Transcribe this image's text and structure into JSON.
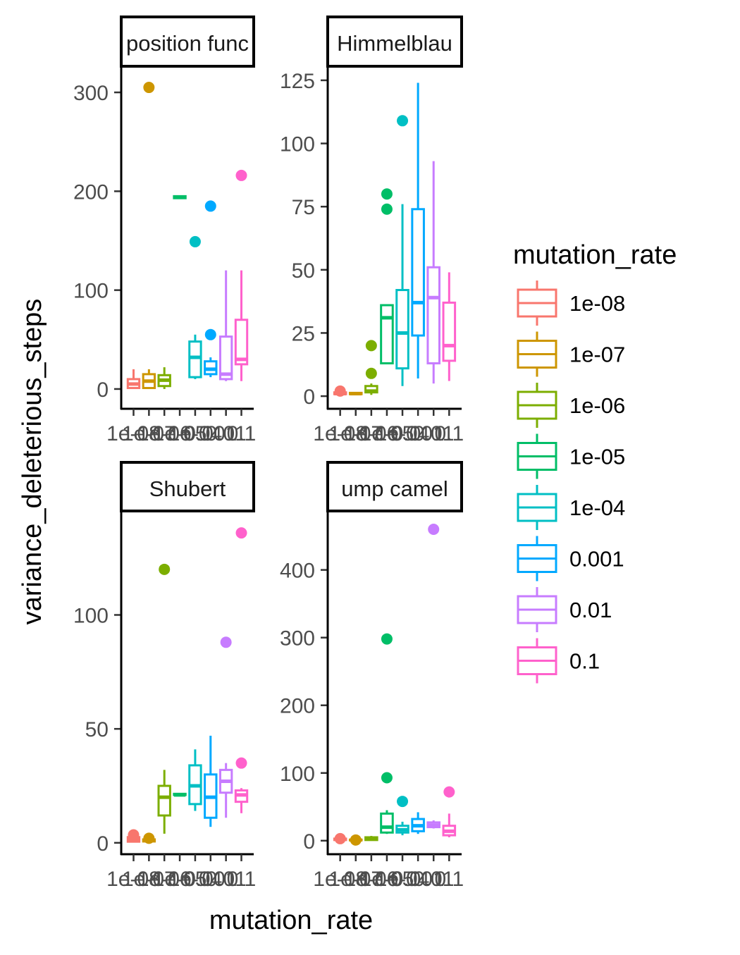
{
  "axis": {
    "xlabel": "mutation_rate",
    "ylabel": "variance_deleterious_steps"
  },
  "legend": {
    "title": "mutation_rate",
    "placement": "right"
  },
  "chart_data": [
    {
      "type": "box",
      "panel": "position func",
      "strip_label": "position func",
      "ylim": [
        -20,
        325
      ],
      "yticks": [
        0,
        100,
        200,
        300
      ],
      "categories": [
        "1e-08",
        "1e-07",
        "1e-06",
        "1e-05",
        "1e-04",
        "0.001",
        "0.01",
        "0.1"
      ],
      "tick_labels": [
        "1e-08",
        "1e-07",
        "1e-06",
        "1e-05",
        "1e-04",
        "0.001",
        "0.01",
        "0.1"
      ],
      "boxes": [
        {
          "category": "1e-08",
          "min": 0,
          "q1": 1,
          "median": 5,
          "q3": 10,
          "max": 20,
          "outliers": []
        },
        {
          "category": "1e-07",
          "min": 0,
          "q1": 1,
          "median": 8,
          "q3": 15,
          "max": 20,
          "outliers": [
            305
          ]
        },
        {
          "category": "1e-06",
          "min": 0,
          "q1": 3,
          "median": 9,
          "q3": 14,
          "max": 22,
          "outliers": []
        },
        {
          "category": "1e-05",
          "min": 193,
          "q1": 193,
          "median": 194,
          "q3": 195,
          "max": 195,
          "outliers": []
        },
        {
          "category": "1e-04",
          "min": 10,
          "q1": 12,
          "median": 32,
          "q3": 48,
          "max": 55,
          "outliers": [
            149
          ]
        },
        {
          "category": "0.001",
          "min": 12,
          "q1": 15,
          "median": 20,
          "q3": 28,
          "max": 32,
          "outliers": [
            55,
            185
          ]
        },
        {
          "category": "0.01",
          "min": 8,
          "q1": 10,
          "median": 15,
          "q3": 53,
          "max": 120,
          "outliers": []
        },
        {
          "category": "0.1",
          "min": 8,
          "q1": 25,
          "median": 30,
          "q3": 70,
          "max": 120,
          "outliers": [
            216
          ]
        }
      ]
    },
    {
      "type": "box",
      "panel": "Himmelblau",
      "strip_label": "Himmelblau",
      "ylim": [
        -5,
        130
      ],
      "yticks": [
        0,
        25,
        50,
        75,
        100,
        125
      ],
      "categories": [
        "1e-08",
        "1e-07",
        "1e-06",
        "1e-05",
        "1e-04",
        "0.001",
        "0.01",
        "0.1"
      ],
      "tick_labels": [
        "1e-08",
        "1e-07",
        "1e-06",
        "1e-05",
        "1e-04",
        "0.001",
        "0.01",
        "0.1"
      ],
      "boxes": [
        {
          "category": "1e-08",
          "min": 0.5,
          "q1": 0.8,
          "median": 1,
          "q3": 1.5,
          "max": 2,
          "outliers": [
            2
          ]
        },
        {
          "category": "1e-07",
          "min": 0.5,
          "q1": 0.8,
          "median": 1,
          "q3": 1.3,
          "max": 1.5,
          "outliers": []
        },
        {
          "category": "1e-06",
          "min": 0.5,
          "q1": 1.5,
          "median": 2,
          "q3": 4,
          "max": 5,
          "outliers": [
            9,
            20
          ]
        },
        {
          "category": "1e-05",
          "min": 13,
          "q1": 13,
          "median": 31,
          "q3": 36,
          "max": 36,
          "outliers": [
            74,
            80
          ]
        },
        {
          "category": "1e-04",
          "min": 4,
          "q1": 11,
          "median": 25,
          "q3": 42,
          "max": 76,
          "outliers": [
            109
          ]
        },
        {
          "category": "0.001",
          "min": 7,
          "q1": 24,
          "median": 37,
          "q3": 74,
          "max": 124,
          "outliers": []
        },
        {
          "category": "0.01",
          "min": 5,
          "q1": 13,
          "median": 39,
          "q3": 51,
          "max": 93,
          "outliers": []
        },
        {
          "category": "0.1",
          "min": 6,
          "q1": 14,
          "median": 20,
          "q3": 37,
          "max": 49,
          "outliers": []
        }
      ]
    },
    {
      "type": "box",
      "panel": "Shubert",
      "strip_label": "Shubert",
      "ylim": [
        -5,
        145
      ],
      "yticks": [
        0,
        50,
        100
      ],
      "categories": [
        "1e-08",
        "1e-07",
        "1e-06",
        "1e-05",
        "1e-04",
        "0.001",
        "0.01",
        "0.1"
      ],
      "tick_labels": [
        "1e-08",
        "1e-07",
        "1e-06",
        "1e-05",
        "1e-04",
        "0.001",
        "0.01",
        "0.1"
      ],
      "boxes": [
        {
          "category": "1e-08",
          "min": 0.3,
          "q1": 0.5,
          "median": 1.5,
          "q3": 2.5,
          "max": 3.5,
          "outliers": [
            3.5
          ]
        },
        {
          "category": "1e-07",
          "min": 0.3,
          "q1": 0.6,
          "median": 1,
          "q3": 1.5,
          "max": 2,
          "outliers": [
            2
          ]
        },
        {
          "category": "1e-06",
          "min": 4,
          "q1": 12,
          "median": 20,
          "q3": 25,
          "max": 32,
          "outliers": [
            120
          ]
        },
        {
          "category": "1e-05",
          "min": 20.5,
          "q1": 21,
          "median": 21,
          "q3": 21.5,
          "max": 21.5,
          "outliers": []
        },
        {
          "category": "1e-04",
          "min": 14,
          "q1": 17,
          "median": 25,
          "q3": 34,
          "max": 41,
          "outliers": []
        },
        {
          "category": "0.001",
          "min": 7,
          "q1": 11,
          "median": 20,
          "q3": 30,
          "max": 47,
          "outliers": []
        },
        {
          "category": "0.01",
          "min": 11,
          "q1": 22,
          "median": 27,
          "q3": 32,
          "max": 35,
          "outliers": [
            88
          ]
        },
        {
          "category": "0.1",
          "min": 13,
          "q1": 18,
          "median": 21,
          "q3": 23,
          "max": 24,
          "outliers": [
            35,
            136
          ]
        }
      ]
    },
    {
      "type": "box",
      "panel": "ump camel",
      "strip_label": "ump camel",
      "ylim": [
        -20,
        485
      ],
      "yticks": [
        0,
        100,
        200,
        300,
        400
      ],
      "categories": [
        "1e-08",
        "1e-07",
        "1e-06",
        "1e-05",
        "1e-04",
        "0.001",
        "0.01",
        "0.1"
      ],
      "tick_labels": [
        "1e-08",
        "1e-07",
        "1e-06",
        "1e-05",
        "1e-04",
        "0.001",
        "0.01",
        "0.1"
      ],
      "boxes": [
        {
          "category": "1e-08",
          "min": 0.5,
          "q1": 1,
          "median": 2,
          "q3": 3,
          "max": 4,
          "outliers": [
            3
          ]
        },
        {
          "category": "1e-07",
          "min": 0.3,
          "q1": 0.5,
          "median": 1,
          "q3": 1.5,
          "max": 2,
          "outliers": [
            1
          ]
        },
        {
          "category": "1e-06",
          "min": 0.5,
          "q1": 1,
          "median": 3,
          "q3": 5,
          "max": 7,
          "outliers": []
        },
        {
          "category": "1e-05",
          "min": 10,
          "q1": 12,
          "median": 20,
          "q3": 40,
          "max": 45,
          "outliers": [
            93,
            298
          ]
        },
        {
          "category": "1e-04",
          "min": 8,
          "q1": 12,
          "median": 16,
          "q3": 22,
          "max": 28,
          "outliers": [
            58
          ]
        },
        {
          "category": "0.001",
          "min": 10,
          "q1": 14,
          "median": 22,
          "q3": 32,
          "max": 42,
          "outliers": []
        },
        {
          "category": "0.01",
          "min": 18,
          "q1": 20,
          "median": 23,
          "q3": 27,
          "max": 30,
          "outliers": [
            460
          ]
        },
        {
          "category": "0.1",
          "min": 5,
          "q1": 8,
          "median": 14,
          "q3": 22,
          "max": 40,
          "outliers": [
            72
          ]
        }
      ]
    }
  ],
  "series": [
    {
      "name": "1e-08",
      "color": "#F8766D"
    },
    {
      "name": "1e-07",
      "color": "#CD9600"
    },
    {
      "name": "1e-06",
      "color": "#7CAE00"
    },
    {
      "name": "1e-05",
      "color": "#00BE67"
    },
    {
      "name": "1e-04",
      "color": "#00BFC4"
    },
    {
      "name": "0.001",
      "color": "#00A9FF"
    },
    {
      "name": "0.01",
      "color": "#C77CFF"
    },
    {
      "name": "0.1",
      "color": "#FF61CC"
    }
  ]
}
